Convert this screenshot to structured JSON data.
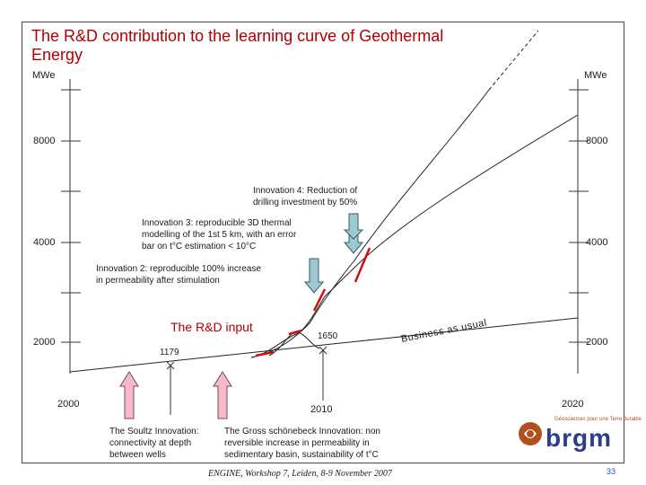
{
  "title": "The R&D contribution to the learning curve of Geothermal Energy",
  "unit_left": "MWe",
  "unit_right": "MWe",
  "y_labels": [
    "8000",
    "4000",
    "2000"
  ],
  "x_labels": [
    "2000",
    "2010",
    "2020"
  ],
  "innovation4": [
    "Innovation 4: Reduction of",
    "drilling investment by 50%"
  ],
  "innovation3": [
    "Innovation 3: reproducible 3D thermal",
    "modelling of the 1st 5 km, with an error",
    "bar on t°C estimation < 10°C"
  ],
  "innovation2": [
    "Innovation 2: reproducible 100% increase",
    "in permeability after stimulation"
  ],
  "rd_input": "The R&D input",
  "business_as_usual": "Business as usual",
  "mark_1179": "1179",
  "mark_1650": "1650",
  "soultz_caption": [
    "The Soultz Innovation:",
    "connectivity at depth",
    "between wells"
  ],
  "gross_caption": [
    "The Gross schönebeck Innovation: non",
    "reversible increase in permeability in",
    "sedimentary basin, sustainability of t°C"
  ],
  "footer": "ENGINE, Workshop 7, Leiden, 8-9 November 2007",
  "page_number": "33",
  "logo": {
    "text": "brgm",
    "tagline": "Géosciences pour une Terre durable"
  },
  "colors": {
    "title": "#b00000",
    "accent_red": "#cc1111",
    "arrow_pink": "#f4b8c8",
    "arrow_teal": "#9cc8d0",
    "logo_blue": "#2b3d8c"
  }
}
